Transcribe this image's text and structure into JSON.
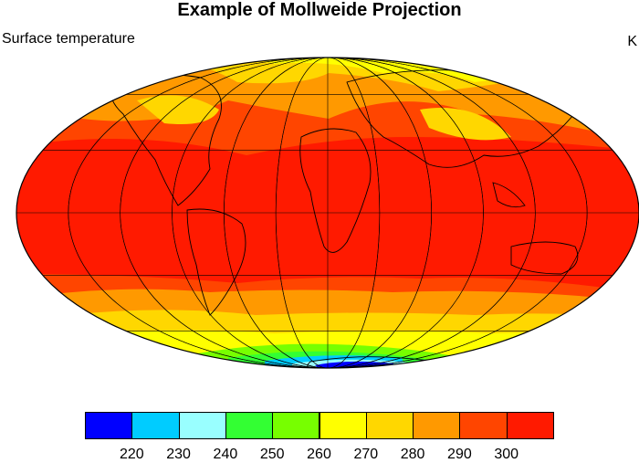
{
  "title": "Example of Mollweide Projection",
  "left_subtitle": "Surface temperature",
  "right_subtitle": "K",
  "map": {
    "projection": "mollweide",
    "variable": "surface temperature",
    "graticule": {
      "lon_step_deg": 30,
      "lat_step_deg": 30
    },
    "fill_style": "filled contours with black coastlines"
  },
  "colorbar": {
    "colors": [
      "#0000ff",
      "#00ccff",
      "#99ffff",
      "#33ff33",
      "#77ff00",
      "#ffff00",
      "#ffd700",
      "#ff9900",
      "#ff4500",
      "#ff1a00"
    ],
    "labels": [
      "220",
      "230",
      "240",
      "250",
      "260",
      "270",
      "280",
      "290",
      "300"
    ]
  }
}
